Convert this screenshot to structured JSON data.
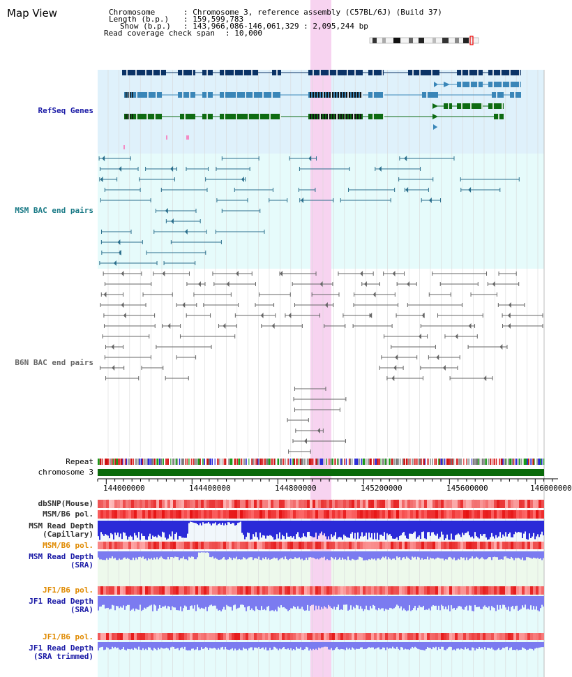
{
  "title": "Map View",
  "info": {
    "chromosome_key": "Chromosome    ",
    "chromosome_val": ": Chromosome 3, reference assembly (C57BL/6J) (Build 37)",
    "length_key": "Length (b.p.)",
    "length_val": ": 159,599,783",
    "show_key": "Show (b.p.)",
    "show_val": ": 143,966,086-146,061,329 : 2,095,244 bp",
    "coverage_key": "Read coverage check span",
    "coverage_val": ": 10,000"
  },
  "tracks": {
    "refseq": "RefSeq Genes",
    "msm_bac": "MSM BAC end pairs",
    "b6n_bac": "B6N BAC end pairs",
    "repeat": "Repeat",
    "chromosome": "chromosome 3",
    "dbsnp": "dbSNP(Mouse)",
    "msm_b6_pol": "MSM/B6 pol.",
    "msm_depth_cap": "MSM Read Depth\n(Capillary)",
    "msm_b6_pol_2": "MSM/B6 pol.",
    "msm_depth_sra": "MSM Read Depth\n(SRA)",
    "jf1_b6_pol": "JF1/B6 pol.",
    "jf1_depth_sra": "JF1 Read Depth\n(SRA)",
    "jf1_b6_pol_2": "JF1/B6 pol.",
    "jf1_depth_trim": "JF1 Read Depth\n(SRA trimmed)"
  },
  "axis": {
    "ticks": [
      "144000000",
      "144400000",
      "144800000",
      "145200000",
      "145600000",
      "146000000"
    ]
  },
  "colors": {
    "refseq_bg": "#dff1fb",
    "msm_bg": "#e6fbfb",
    "highlight": "#f7d3f0",
    "gene_dark": "#0b3366",
    "gene_mid": "#3a86b8",
    "gene_green": "#0e6b12",
    "msm_line": "#2a6e8c",
    "b6n_line": "#666666",
    "chrom_green": "#0a6a0a",
    "depth_blue": "#2a2ad8",
    "depth_light": "#7b7bf0",
    "label_blue": "#1a1aa6",
    "label_teal": "#1a7a86",
    "label_orange": "#e08a00"
  }
}
